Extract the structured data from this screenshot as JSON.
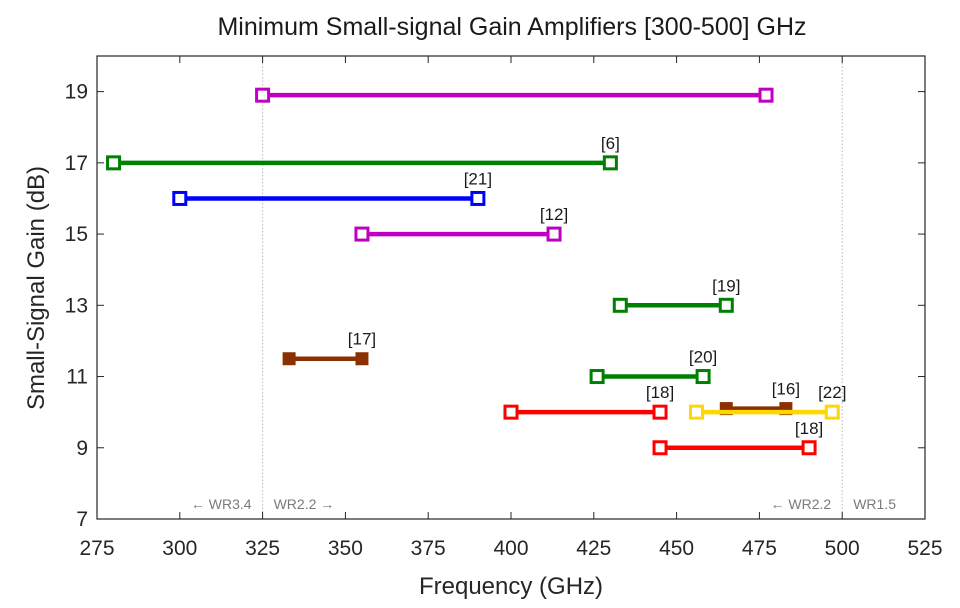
{
  "chart_data": {
    "type": "range",
    "title": "Minimum Small-signal Gain Amplifiers [300-500] GHz",
    "xlabel": "Frequency (GHz)",
    "ylabel": "Small-Signal Gain (dB)",
    "xlim": [
      275,
      525
    ],
    "ylim": [
      7,
      20
    ],
    "xticks": [
      "275",
      "300",
      "325",
      "350",
      "375",
      "400",
      "425",
      "450",
      "475",
      "500",
      "525"
    ],
    "yticks": [
      "7",
      "9",
      "11",
      "13",
      "15",
      "17",
      "19"
    ],
    "grid": false,
    "reference_lines": [
      {
        "x": 325,
        "left_label": "← WR3.4",
        "right_label": "WR2.2 →"
      },
      {
        "x": 500,
        "left_label": "← WR2.2",
        "right_label": "WR1.5"
      }
    ],
    "ranges": [
      {
        "ref": "",
        "x_start": 325,
        "x_end": 477,
        "gain": 18.9,
        "color": "#c000c0",
        "marker": "hollow"
      },
      {
        "ref": "[6]",
        "x_start": 280,
        "x_end": 430,
        "gain": 17,
        "color": "#008000",
        "marker": "hollow"
      },
      {
        "ref": "[21]",
        "x_start": 300,
        "x_end": 390,
        "gain": 16,
        "color": "#0000ff",
        "marker": "hollow"
      },
      {
        "ref": "[12]",
        "x_start": 355,
        "x_end": 413,
        "gain": 15,
        "color": "#c000c0",
        "marker": "hollow"
      },
      {
        "ref": "[19]",
        "x_start": 433,
        "x_end": 465,
        "gain": 13,
        "color": "#008000",
        "marker": "hollow"
      },
      {
        "ref": "[17]",
        "x_start": 333,
        "x_end": 355,
        "gain": 11.5,
        "color": "#8b3000",
        "marker": "filled"
      },
      {
        "ref": "[20]",
        "x_start": 426,
        "x_end": 458,
        "gain": 11,
        "color": "#008000",
        "marker": "hollow"
      },
      {
        "ref": "[18]",
        "x_start": 400,
        "x_end": 445,
        "gain": 10,
        "color": "#ff0000",
        "marker": "hollow"
      },
      {
        "ref": "[16]",
        "x_start": 465,
        "x_end": 483,
        "gain": 10.1,
        "color": "#8b3000",
        "marker": "filled"
      },
      {
        "ref": "[22]",
        "x_start": 456,
        "x_end": 497,
        "gain": 10,
        "color": "#ffd700",
        "marker": "hollow"
      },
      {
        "ref": "[18]",
        "x_start": 445,
        "x_end": 490,
        "gain": 9,
        "color": "#ff0000",
        "marker": "hollow"
      }
    ]
  }
}
